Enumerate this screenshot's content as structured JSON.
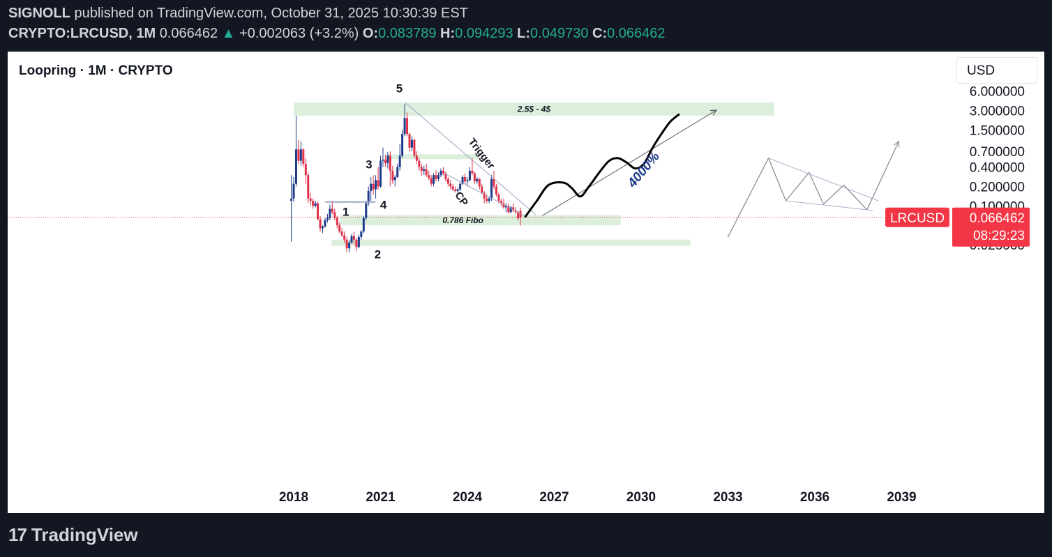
{
  "header": {
    "publisher": "SIGNOLL",
    "published_text": "published on TradingView.com, October 31, 2025 10:30:39 EST",
    "symbol": "CRYPTO:LRCUSD, 1M",
    "last": "0.066462",
    "change_arrow": "▲",
    "change": "+0.002063 (+3.2%)",
    "o_label": "O:",
    "o_value": "0.083789",
    "h_label": "H:",
    "h_value": "0.094293",
    "l_label": "L:",
    "l_value": "0.049730",
    "c_label": "C:",
    "c_value": "0.066462"
  },
  "panel": {
    "title": "Loopring · 1M · CRYPTO",
    "currency_button": "USD"
  },
  "footer": {
    "logo_mark": "17",
    "logo_text": "TradingView"
  },
  "colors": {
    "up": "#1e3a8a",
    "down": "#e0304a",
    "zone": "#dcefdc",
    "price_tag": "#f23645",
    "label_blue": "#1e3a8a"
  },
  "chart_data": {
    "type": "candlestick",
    "title": "Loopring · 1M · CRYPTO",
    "y_scale": "log",
    "y_ticks": [
      "6.000000",
      "3.000000",
      "1.500000",
      "0.700000",
      "0.400000",
      "0.200000",
      "0.100000",
      "0.025000"
    ],
    "x_ticks": [
      "2018",
      "2021",
      "2024",
      "2027",
      "2030",
      "2033",
      "2036",
      "2039"
    ],
    "last_price": {
      "symbol": "LRCUSD",
      "value": "0.066462",
      "countdown": "08:29:23"
    },
    "candles": [
      {
        "t": 2017.917,
        "o": 0.12,
        "h": 0.3,
        "l": 0.028,
        "c": 0.13
      },
      {
        "t": 2018.0,
        "o": 0.13,
        "h": 0.28,
        "l": 0.115,
        "c": 0.22
      },
      {
        "t": 2018.083,
        "o": 0.22,
        "h": 2.5,
        "l": 0.2,
        "c": 0.75
      },
      {
        "t": 2018.167,
        "o": 0.75,
        "h": 1.05,
        "l": 0.45,
        "c": 0.5
      },
      {
        "t": 2018.25,
        "o": 0.5,
        "h": 1.0,
        "l": 0.42,
        "c": 0.75
      },
      {
        "t": 2018.333,
        "o": 0.75,
        "h": 0.78,
        "l": 0.4,
        "c": 0.45
      },
      {
        "t": 2018.417,
        "o": 0.45,
        "h": 0.55,
        "l": 0.22,
        "c": 0.3
      },
      {
        "t": 2018.5,
        "o": 0.3,
        "h": 0.33,
        "l": 0.11,
        "c": 0.13
      },
      {
        "t": 2018.583,
        "o": 0.13,
        "h": 0.16,
        "l": 0.1,
        "c": 0.12
      },
      {
        "t": 2018.667,
        "o": 0.12,
        "h": 0.13,
        "l": 0.09,
        "c": 0.1
      },
      {
        "t": 2018.75,
        "o": 0.1,
        "h": 0.12,
        "l": 0.095,
        "c": 0.11
      },
      {
        "t": 2018.833,
        "o": 0.11,
        "h": 0.115,
        "l": 0.06,
        "c": 0.062
      },
      {
        "t": 2018.917,
        "o": 0.062,
        "h": 0.07,
        "l": 0.04,
        "c": 0.045
      },
      {
        "t": 2019.0,
        "o": 0.045,
        "h": 0.05,
        "l": 0.038,
        "c": 0.048
      },
      {
        "t": 2019.083,
        "o": 0.048,
        "h": 0.065,
        "l": 0.046,
        "c": 0.06
      },
      {
        "t": 2019.167,
        "o": 0.06,
        "h": 0.075,
        "l": 0.055,
        "c": 0.065
      },
      {
        "t": 2019.25,
        "o": 0.065,
        "h": 0.105,
        "l": 0.06,
        "c": 0.09
      },
      {
        "t": 2019.333,
        "o": 0.09,
        "h": 0.12,
        "l": 0.075,
        "c": 0.08
      },
      {
        "t": 2019.417,
        "o": 0.08,
        "h": 0.09,
        "l": 0.06,
        "c": 0.065
      },
      {
        "t": 2019.5,
        "o": 0.065,
        "h": 0.07,
        "l": 0.045,
        "c": 0.05
      },
      {
        "t": 2019.583,
        "o": 0.05,
        "h": 0.055,
        "l": 0.038,
        "c": 0.04
      },
      {
        "t": 2019.667,
        "o": 0.04,
        "h": 0.045,
        "l": 0.033,
        "c": 0.035
      },
      {
        "t": 2019.75,
        "o": 0.035,
        "h": 0.04,
        "l": 0.027,
        "c": 0.03
      },
      {
        "t": 2019.833,
        "o": 0.03,
        "h": 0.033,
        "l": 0.019,
        "c": 0.022
      },
      {
        "t": 2019.917,
        "o": 0.022,
        "h": 0.029,
        "l": 0.019,
        "c": 0.027
      },
      {
        "t": 2020.0,
        "o": 0.027,
        "h": 0.037,
        "l": 0.026,
        "c": 0.034
      },
      {
        "t": 2020.083,
        "o": 0.034,
        "h": 0.04,
        "l": 0.025,
        "c": 0.03
      },
      {
        "t": 2020.167,
        "o": 0.03,
        "h": 0.032,
        "l": 0.02,
        "c": 0.023
      },
      {
        "t": 2020.25,
        "o": 0.023,
        "h": 0.036,
        "l": 0.022,
        "c": 0.033
      },
      {
        "t": 2020.333,
        "o": 0.033,
        "h": 0.042,
        "l": 0.03,
        "c": 0.04
      },
      {
        "t": 2020.417,
        "o": 0.04,
        "h": 0.07,
        "l": 0.038,
        "c": 0.065
      },
      {
        "t": 2020.5,
        "o": 0.065,
        "h": 0.12,
        "l": 0.06,
        "c": 0.11
      },
      {
        "t": 2020.583,
        "o": 0.11,
        "h": 0.2,
        "l": 0.1,
        "c": 0.17
      },
      {
        "t": 2020.667,
        "o": 0.17,
        "h": 0.28,
        "l": 0.12,
        "c": 0.22
      },
      {
        "t": 2020.75,
        "o": 0.22,
        "h": 0.3,
        "l": 0.15,
        "c": 0.18
      },
      {
        "t": 2020.833,
        "o": 0.18,
        "h": 0.3,
        "l": 0.13,
        "c": 0.25
      },
      {
        "t": 2020.917,
        "o": 0.25,
        "h": 0.4,
        "l": 0.18,
        "c": 0.2
      },
      {
        "t": 2021.0,
        "o": 0.2,
        "h": 0.6,
        "l": 0.19,
        "c": 0.5
      },
      {
        "t": 2021.083,
        "o": 0.5,
        "h": 0.8,
        "l": 0.4,
        "c": 0.52
      },
      {
        "t": 2021.167,
        "o": 0.52,
        "h": 0.62,
        "l": 0.4,
        "c": 0.46
      },
      {
        "t": 2021.25,
        "o": 0.46,
        "h": 0.68,
        "l": 0.38,
        "c": 0.6
      },
      {
        "t": 2021.333,
        "o": 0.6,
        "h": 0.7,
        "l": 0.2,
        "c": 0.35
      },
      {
        "t": 2021.417,
        "o": 0.35,
        "h": 0.42,
        "l": 0.22,
        "c": 0.25
      },
      {
        "t": 2021.5,
        "o": 0.25,
        "h": 0.3,
        "l": 0.2,
        "c": 0.28
      },
      {
        "t": 2021.583,
        "o": 0.28,
        "h": 0.45,
        "l": 0.27,
        "c": 0.4
      },
      {
        "t": 2021.667,
        "o": 0.4,
        "h": 0.9,
        "l": 0.35,
        "c": 0.6
      },
      {
        "t": 2021.75,
        "o": 0.6,
        "h": 1.5,
        "l": 0.55,
        "c": 1.3
      },
      {
        "t": 2021.833,
        "o": 1.3,
        "h": 3.8,
        "l": 1.2,
        "c": 2.3
      },
      {
        "t": 2021.917,
        "o": 2.3,
        "h": 2.8,
        "l": 1.2,
        "c": 1.3
      },
      {
        "t": 2022.0,
        "o": 1.3,
        "h": 1.35,
        "l": 0.7,
        "c": 0.8
      },
      {
        "t": 2022.083,
        "o": 0.8,
        "h": 1.2,
        "l": 0.7,
        "c": 1.05
      },
      {
        "t": 2022.167,
        "o": 1.05,
        "h": 1.1,
        "l": 0.55,
        "c": 0.6
      },
      {
        "t": 2022.25,
        "o": 0.6,
        "h": 0.7,
        "l": 0.45,
        "c": 0.5
      },
      {
        "t": 2022.333,
        "o": 0.5,
        "h": 0.55,
        "l": 0.35,
        "c": 0.4
      },
      {
        "t": 2022.417,
        "o": 0.4,
        "h": 0.45,
        "l": 0.29,
        "c": 0.35
      },
      {
        "t": 2022.5,
        "o": 0.35,
        "h": 0.42,
        "l": 0.3,
        "c": 0.37
      },
      {
        "t": 2022.583,
        "o": 0.37,
        "h": 0.45,
        "l": 0.28,
        "c": 0.3
      },
      {
        "t": 2022.667,
        "o": 0.3,
        "h": 0.35,
        "l": 0.25,
        "c": 0.27
      },
      {
        "t": 2022.75,
        "o": 0.27,
        "h": 0.3,
        "l": 0.2,
        "c": 0.22
      },
      {
        "t": 2022.833,
        "o": 0.22,
        "h": 0.32,
        "l": 0.2,
        "c": 0.3
      },
      {
        "t": 2022.917,
        "o": 0.3,
        "h": 0.36,
        "l": 0.24,
        "c": 0.26
      },
      {
        "t": 2023.0,
        "o": 0.26,
        "h": 0.33,
        "l": 0.24,
        "c": 0.3
      },
      {
        "t": 2023.083,
        "o": 0.3,
        "h": 0.38,
        "l": 0.28,
        "c": 0.35
      },
      {
        "t": 2023.167,
        "o": 0.35,
        "h": 0.4,
        "l": 0.3,
        "c": 0.32
      },
      {
        "t": 2023.25,
        "o": 0.32,
        "h": 0.34,
        "l": 0.24,
        "c": 0.26
      },
      {
        "t": 2023.333,
        "o": 0.26,
        "h": 0.28,
        "l": 0.2,
        "c": 0.22
      },
      {
        "t": 2023.417,
        "o": 0.22,
        "h": 0.25,
        "l": 0.18,
        "c": 0.2
      },
      {
        "t": 2023.5,
        "o": 0.2,
        "h": 0.22,
        "l": 0.17,
        "c": 0.18
      },
      {
        "t": 2023.583,
        "o": 0.18,
        "h": 0.2,
        "l": 0.16,
        "c": 0.17
      },
      {
        "t": 2023.667,
        "o": 0.17,
        "h": 0.19,
        "l": 0.16,
        "c": 0.18
      },
      {
        "t": 2023.75,
        "o": 0.18,
        "h": 0.23,
        "l": 0.17,
        "c": 0.22
      },
      {
        "t": 2023.833,
        "o": 0.22,
        "h": 0.3,
        "l": 0.21,
        "c": 0.28
      },
      {
        "t": 2023.917,
        "o": 0.28,
        "h": 0.32,
        "l": 0.22,
        "c": 0.24
      },
      {
        "t": 2024.0,
        "o": 0.24,
        "h": 0.28,
        "l": 0.2,
        "c": 0.25
      },
      {
        "t": 2024.083,
        "o": 0.25,
        "h": 0.4,
        "l": 0.24,
        "c": 0.35
      },
      {
        "t": 2024.167,
        "o": 0.35,
        "h": 0.55,
        "l": 0.3,
        "c": 0.32
      },
      {
        "t": 2024.25,
        "o": 0.32,
        "h": 0.34,
        "l": 0.22,
        "c": 0.24
      },
      {
        "t": 2024.333,
        "o": 0.24,
        "h": 0.28,
        "l": 0.22,
        "c": 0.26
      },
      {
        "t": 2024.417,
        "o": 0.26,
        "h": 0.27,
        "l": 0.18,
        "c": 0.2
      },
      {
        "t": 2024.5,
        "o": 0.2,
        "h": 0.22,
        "l": 0.15,
        "c": 0.16
      },
      {
        "t": 2024.583,
        "o": 0.16,
        "h": 0.17,
        "l": 0.11,
        "c": 0.13
      },
      {
        "t": 2024.667,
        "o": 0.13,
        "h": 0.15,
        "l": 0.11,
        "c": 0.12
      },
      {
        "t": 2024.75,
        "o": 0.12,
        "h": 0.14,
        "l": 0.11,
        "c": 0.13
      },
      {
        "t": 2024.833,
        "o": 0.13,
        "h": 0.3,
        "l": 0.12,
        "c": 0.26
      },
      {
        "t": 2024.917,
        "o": 0.26,
        "h": 0.35,
        "l": 0.18,
        "c": 0.2
      },
      {
        "t": 2025.0,
        "o": 0.2,
        "h": 0.22,
        "l": 0.14,
        "c": 0.15
      },
      {
        "t": 2025.083,
        "o": 0.15,
        "h": 0.16,
        "l": 0.11,
        "c": 0.12
      },
      {
        "t": 2025.167,
        "o": 0.12,
        "h": 0.13,
        "l": 0.1,
        "c": 0.11
      },
      {
        "t": 2025.25,
        "o": 0.11,
        "h": 0.13,
        "l": 0.09,
        "c": 0.095
      },
      {
        "t": 2025.333,
        "o": 0.095,
        "h": 0.11,
        "l": 0.08,
        "c": 0.1
      },
      {
        "t": 2025.417,
        "o": 0.1,
        "h": 0.11,
        "l": 0.075,
        "c": 0.08
      },
      {
        "t": 2025.5,
        "o": 0.08,
        "h": 0.1,
        "l": 0.077,
        "c": 0.095
      },
      {
        "t": 2025.583,
        "o": 0.095,
        "h": 0.11,
        "l": 0.08,
        "c": 0.085
      },
      {
        "t": 2025.667,
        "o": 0.085,
        "h": 0.095,
        "l": 0.075,
        "c": 0.08
      },
      {
        "t": 2025.75,
        "o": 0.08,
        "h": 0.085,
        "l": 0.06,
        "c": 0.064
      },
      {
        "t": 2025.833,
        "o": 0.083789,
        "h": 0.094293,
        "l": 0.04973,
        "c": 0.066462
      }
    ],
    "zones": [
      {
        "label": "2.5$ - 4$",
        "x_from": 2018.0,
        "x_to": 2034.6,
        "y_low": 2.5,
        "y_high": 4.0
      },
      {
        "label": "0.786 Fibo",
        "x_from": 2019.6,
        "x_to": 2029.3,
        "y_low": 0.05,
        "y_high": 0.072
      },
      {
        "label": "",
        "x_from": 2019.3,
        "x_to": 2031.7,
        "y_low": 0.024,
        "y_high": 0.03
      },
      {
        "label": "",
        "x_from": 2021.2,
        "x_to": 2024.4,
        "y_low": 0.53,
        "y_high": 0.63
      }
    ],
    "wave_labels": [
      {
        "label": "1",
        "t": 2019.8,
        "price": 0.07
      },
      {
        "label": "2",
        "t": 2020.9,
        "price": 0.0155
      },
      {
        "label": "3",
        "t": 2020.6,
        "price": 0.38
      },
      {
        "label": "4",
        "t": 2021.1,
        "price": 0.09
      },
      {
        "label": "5",
        "t": 2021.65,
        "price": 5.7
      }
    ],
    "annotations": [
      {
        "text": "Trigger",
        "t": 2024.4,
        "price": 0.6
      },
      {
        "text": "CP",
        "t": 2023.7,
        "price": 0.12
      },
      {
        "text": "4000%",
        "t": 2030.2,
        "price": 0.33
      }
    ],
    "lines": [
      {
        "name": "channel-upper",
        "points": [
          [
            2021.85,
            4.0
          ],
          [
            2026.35,
            0.074
          ]
        ]
      },
      {
        "name": "channel-lower",
        "points": [
          [
            2023.2,
            0.32
          ],
          [
            2026.1,
            0.066
          ]
        ]
      },
      {
        "name": "wave4-top",
        "points": [
          [
            2019.1,
            0.115
          ],
          [
            2020.8,
            0.115
          ]
        ]
      },
      {
        "name": "arrow-4000",
        "points": [
          [
            2026.6,
            0.071
          ],
          [
            2032.6,
            3.05
          ]
        ]
      },
      {
        "name": "projection-black",
        "points": [
          [
            2026.0,
            0.068
          ],
          [
            2026.4,
            0.12
          ],
          [
            2026.8,
            0.21
          ],
          [
            2027.3,
            0.23
          ],
          [
            2027.6,
            0.19
          ],
          [
            2027.9,
            0.14
          ],
          [
            2028.2,
            0.2
          ],
          [
            2028.6,
            0.35
          ],
          [
            2028.9,
            0.5
          ],
          [
            2029.2,
            0.55
          ],
          [
            2029.5,
            0.47
          ],
          [
            2029.8,
            0.38
          ],
          [
            2030.1,
            0.45
          ],
          [
            2030.4,
            0.8
          ],
          [
            2030.7,
            1.3
          ],
          [
            2031.0,
            2.0
          ],
          [
            2031.3,
            2.6
          ]
        ]
      },
      {
        "name": "future-path",
        "points": [
          [
            2033.0,
            0.033
          ],
          [
            2034.4,
            0.55
          ],
          [
            2035.0,
            0.12
          ],
          [
            2035.8,
            0.33
          ],
          [
            2036.3,
            0.106
          ],
          [
            2037.0,
            0.21
          ],
          [
            2037.8,
            0.087
          ],
          [
            2038.9,
            1.0
          ]
        ]
      },
      {
        "name": "triangle-upper",
        "points": [
          [
            2034.4,
            0.55
          ],
          [
            2038.2,
            0.12
          ]
        ]
      },
      {
        "name": "triangle-lower",
        "points": [
          [
            2035.0,
            0.12
          ],
          [
            2038.0,
            0.085
          ]
        ]
      }
    ]
  }
}
